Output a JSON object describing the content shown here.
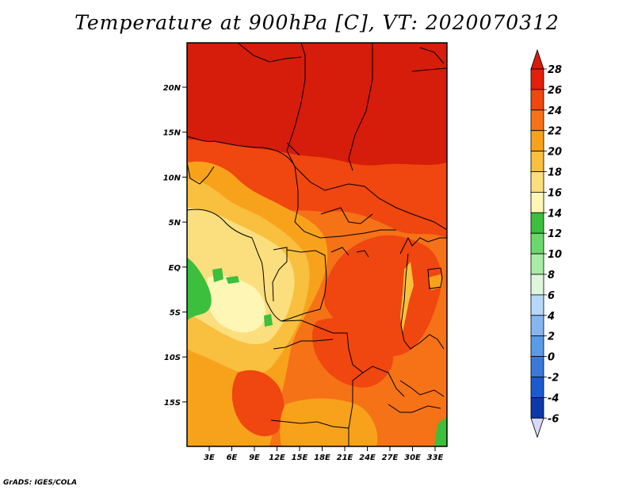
{
  "title": "Temperature at 900hPa [C], VT: 2020070312",
  "footer": "GrADS: IGES/COLA",
  "map": {
    "lat_ticks": [
      {
        "label": "20N",
        "value": 20
      },
      {
        "label": "15N",
        "value": 15
      },
      {
        "label": "10N",
        "value": 10
      },
      {
        "label": "5N",
        "value": 5
      },
      {
        "label": "EQ",
        "value": 0
      },
      {
        "label": "5S",
        "value": -5
      },
      {
        "label": "10S",
        "value": -10
      },
      {
        "label": "15S",
        "value": -15
      }
    ],
    "lon_ticks": [
      {
        "label": "3E",
        "value": 3
      },
      {
        "label": "6E",
        "value": 6
      },
      {
        "label": "9E",
        "value": 9
      },
      {
        "label": "12E",
        "value": 12
      },
      {
        "label": "15E",
        "value": 15
      },
      {
        "label": "18E",
        "value": 18
      },
      {
        "label": "21E",
        "value": 21
      },
      {
        "label": "24E",
        "value": 24
      },
      {
        "label": "27E",
        "value": 27
      },
      {
        "label": "30E",
        "value": 30
      },
      {
        "label": "33E",
        "value": 33
      }
    ]
  },
  "colorbar": {
    "levels": [
      "28",
      "26",
      "24",
      "22",
      "20",
      "18",
      "16",
      "14",
      "12",
      "10",
      "8",
      "6",
      "4",
      "2",
      "0",
      "-2",
      "-4",
      "-6"
    ],
    "colors": [
      "#e41f0a",
      "#f0460f",
      "#f57217",
      "#f8a21c",
      "#f9bf3f",
      "#fbde7e",
      "#fef6b4",
      "#3cbf3c",
      "#6cd86c",
      "#a8eca8",
      "#ddf7dd",
      "#b6d8f8",
      "#86b6f0",
      "#5a9be8",
      "#3c78d8",
      "#1c5ad0",
      "#0c3aa8",
      "#0a1470"
    ],
    "over_color": "#d61c0a",
    "under_color": "#d8d8f8"
  }
}
